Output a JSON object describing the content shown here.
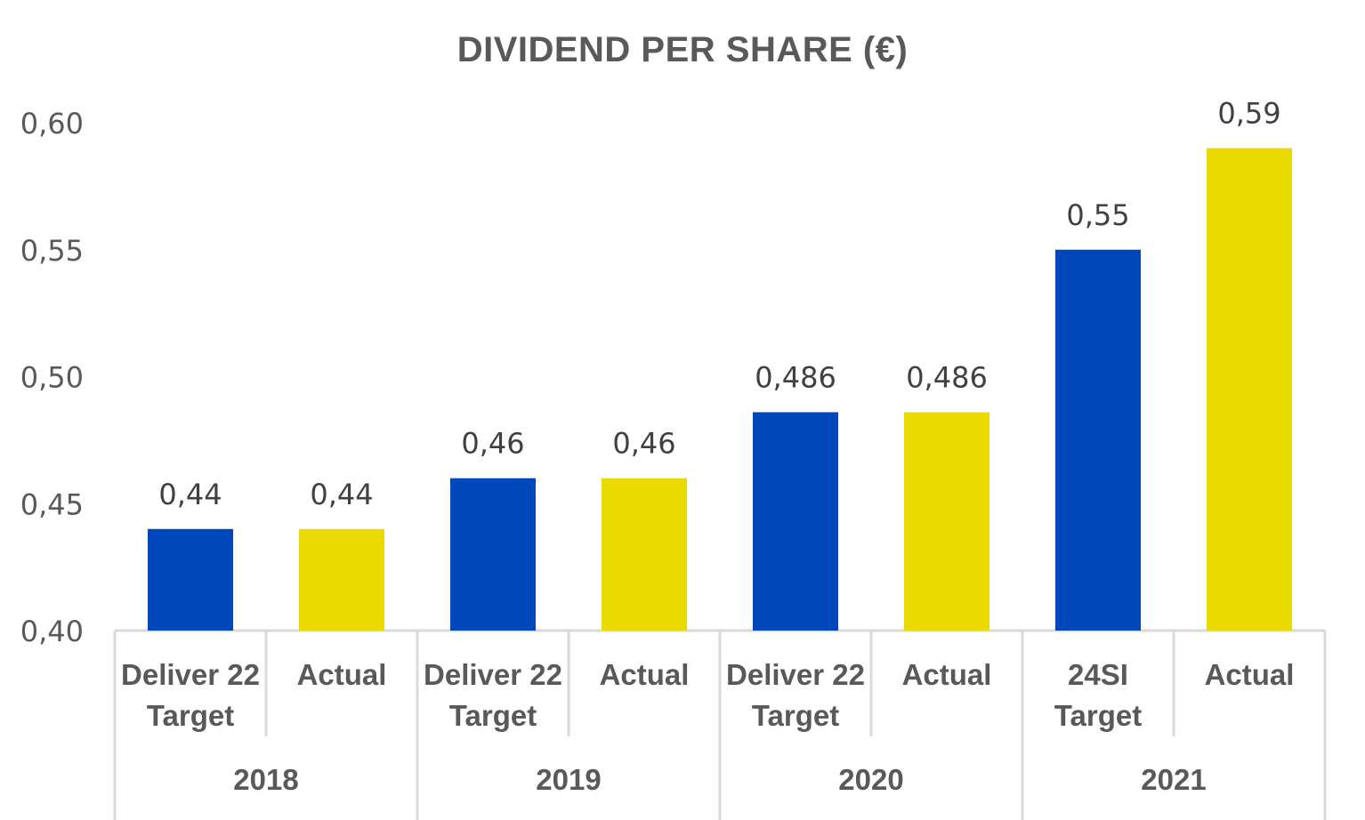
{
  "chart_data": {
    "type": "bar",
    "title": "DIVIDEND PER SHARE (€)",
    "xlabel": "",
    "ylabel": "",
    "ylim": [
      0.4,
      0.6
    ],
    "y_ticks": [
      "0,40",
      "0,45",
      "0,50",
      "0,55",
      "0,60"
    ],
    "y_tick_values": [
      0.4,
      0.45,
      0.5,
      0.55,
      0.6
    ],
    "grid": false,
    "legend": "none",
    "groups": [
      "2018",
      "2019",
      "2020",
      "2021"
    ],
    "categories": [
      {
        "group": "2018",
        "line1": "Deliver 22",
        "line2": "Target",
        "value": 0.44,
        "label": "0,44",
        "color": "#0047BB"
      },
      {
        "group": "2018",
        "line1": "Actual",
        "line2": "",
        "value": 0.44,
        "label": "0,44",
        "color": "#EBDA00"
      },
      {
        "group": "2019",
        "line1": "Deliver 22",
        "line2": "Target",
        "value": 0.46,
        "label": "0,46",
        "color": "#0047BB"
      },
      {
        "group": "2019",
        "line1": "Actual",
        "line2": "",
        "value": 0.46,
        "label": "0,46",
        "color": "#EBDA00"
      },
      {
        "group": "2020",
        "line1": "Deliver 22",
        "line2": "Target",
        "value": 0.486,
        "label": "0,486",
        "color": "#0047BB"
      },
      {
        "group": "2020",
        "line1": "Actual",
        "line2": "",
        "value": 0.486,
        "label": "0,486",
        "color": "#EBDA00"
      },
      {
        "group": "2021",
        "line1": "24SI",
        "line2": "Target",
        "value": 0.55,
        "label": "0,55",
        "color": "#0047BB"
      },
      {
        "group": "2021",
        "line1": "Actual",
        "line2": "",
        "value": 0.59,
        "label": "0,59",
        "color": "#EBDA00"
      }
    ]
  }
}
